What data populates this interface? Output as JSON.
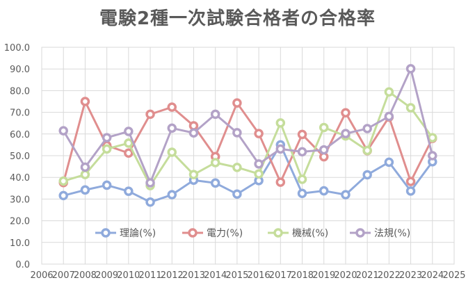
{
  "chart_data": {
    "type": "line",
    "title": "電験2種一次試験合格者の合格率",
    "xlabel": "",
    "ylabel": "",
    "x": [
      2007,
      2008,
      2009,
      2010,
      2011,
      2012,
      2013,
      2014,
      2015,
      2016,
      2017,
      2018,
      2019,
      2020,
      2021,
      2022,
      2023,
      2024
    ],
    "xlim": [
      2006,
      2025
    ],
    "x_ticks": [
      "2006",
      "2007",
      "2008",
      "2009",
      "2010",
      "2011",
      "2012",
      "2013",
      "2014",
      "2015",
      "2016",
      "2017",
      "2018",
      "2019",
      "2020",
      "2021",
      "2022",
      "2023",
      "2024",
      "2025"
    ],
    "ylim": [
      0,
      100
    ],
    "y_ticks": [
      "0.0",
      "10.0",
      "20.0",
      "30.0",
      "40.0",
      "50.0",
      "60.0",
      "70.0",
      "80.0",
      "90.0",
      "100.0"
    ],
    "grid": true,
    "legend_position": "bottom-inside",
    "series": [
      {
        "name": "理論(%)",
        "color": "#8FAADC",
        "values": [
          31.6,
          34.2,
          36.4,
          33.6,
          28.6,
          32.0,
          38.7,
          37.4,
          32.3,
          38.5,
          55.0,
          32.6,
          33.8,
          32.0,
          41.2,
          47.0,
          33.7,
          47.2
        ]
      },
      {
        "name": "電力(%)",
        "color": "#E08E8E",
        "values": [
          37.6,
          75.0,
          54.7,
          51.2,
          69.1,
          72.4,
          63.8,
          49.6,
          74.3,
          60.2,
          37.8,
          59.8,
          49.5,
          69.8,
          52.3,
          67.8,
          38.1,
          58.0
        ]
      },
      {
        "name": "機械(%)",
        "color": "#C5DD9B",
        "values": [
          38.3,
          41.3,
          53.1,
          55.8,
          36.2,
          51.6,
          41.3,
          46.8,
          44.6,
          41.6,
          65.1,
          39.1,
          63.0,
          59.1,
          52.4,
          79.4,
          72.1,
          58.3
        ]
      },
      {
        "name": "法規(%)",
        "color": "#B3A2C7",
        "values": [
          61.5,
          44.7,
          58.3,
          61.2,
          37.5,
          62.7,
          60.5,
          69.1,
          60.6,
          46.2,
          53.1,
          51.8,
          52.7,
          60.2,
          62.5,
          68.1,
          90.1,
          50.0
        ]
      }
    ]
  }
}
